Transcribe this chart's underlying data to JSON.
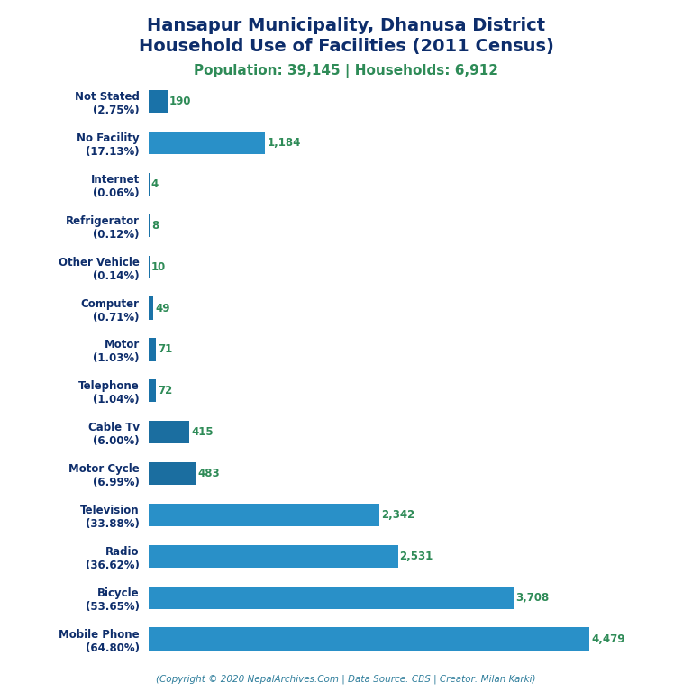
{
  "title_line1": "Hansapur Municipality, Dhanusa District",
  "title_line2": "Household Use of Facilities (2011 Census)",
  "subtitle": "Population: 39,145 | Households: 6,912",
  "footer": "(Copyright © 2020 NepalArchives.Com | Data Source: CBS | Creator: Milan Karki)",
  "categories": [
    "Not Stated\n(2.75%)",
    "No Facility\n(17.13%)",
    "Internet\n(0.06%)",
    "Refrigerator\n(0.12%)",
    "Other Vehicle\n(0.14%)",
    "Computer\n(0.71%)",
    "Motor\n(1.03%)",
    "Telephone\n(1.04%)",
    "Cable Tv\n(6.00%)",
    "Motor Cycle\n(6.99%)",
    "Television\n(33.88%)",
    "Radio\n(36.62%)",
    "Bicycle\n(53.65%)",
    "Mobile Phone\n(64.80%)"
  ],
  "values": [
    190,
    1184,
    4,
    8,
    10,
    49,
    71,
    72,
    415,
    483,
    2342,
    2531,
    3708,
    4479
  ],
  "bar_colors": [
    "#1A72A8",
    "#2990C8",
    "#1A72A8",
    "#1A72A8",
    "#1A72A8",
    "#1A72A8",
    "#1A72A8",
    "#1A72A8",
    "#1B6EA0",
    "#1B6EA0",
    "#2990C8",
    "#2990C8",
    "#2990C8",
    "#2990C8"
  ],
  "title_color": "#0D2D6B",
  "subtitle_color": "#2E8B57",
  "label_color": "#0D2D6B",
  "value_color": "#2E8B57",
  "footer_color": "#2E7D9B",
  "background_color": "#FFFFFF",
  "bar_height": 0.55,
  "title_fontsize": 14,
  "subtitle_fontsize": 11,
  "label_fontsize": 8.5,
  "value_fontsize": 8.5
}
